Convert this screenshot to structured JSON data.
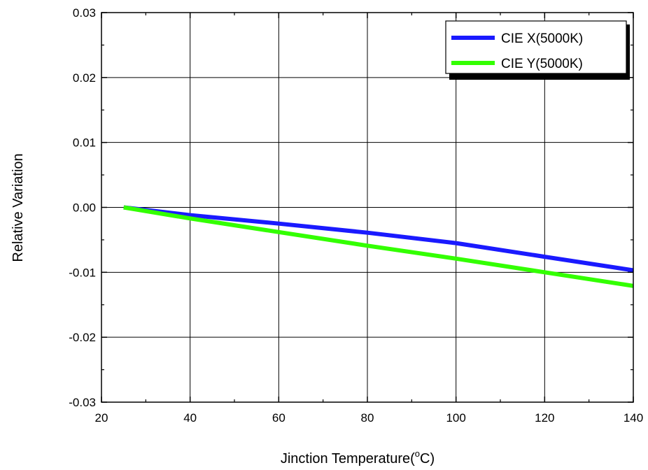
{
  "chart_data": {
    "type": "line",
    "title": "",
    "xlabel": "Jinction Temperature(",
    "xlabel_sup": "o",
    "xlabel_suffix": "C)",
    "ylabel": "Relative Variation",
    "xlim": [
      20,
      140
    ],
    "ylim": [
      -0.03,
      0.03
    ],
    "xticks": [
      "20",
      "40",
      "60",
      "80",
      "100",
      "120",
      "140"
    ],
    "yticks": [
      "-0.03",
      "-0.02",
      "-0.01",
      "0.00",
      "0.01",
      "0.02",
      "0.03"
    ],
    "grid": true,
    "legend_position": "top-right",
    "series": [
      {
        "name": "CIE X(5000K)",
        "color": "#1a1aff",
        "x": [
          25,
          40,
          60,
          80,
          100,
          120,
          140
        ],
        "y": [
          0.0,
          -0.0012,
          -0.0025,
          -0.0039,
          -0.0055,
          -0.0076,
          -0.0097
        ]
      },
      {
        "name": "CIE Y(5000K)",
        "color": "#33ff00",
        "x": [
          25,
          40,
          60,
          80,
          100,
          120,
          140
        ],
        "y": [
          0.0,
          -0.0017,
          -0.0038,
          -0.0059,
          -0.0079,
          -0.01,
          -0.0121
        ]
      }
    ]
  }
}
